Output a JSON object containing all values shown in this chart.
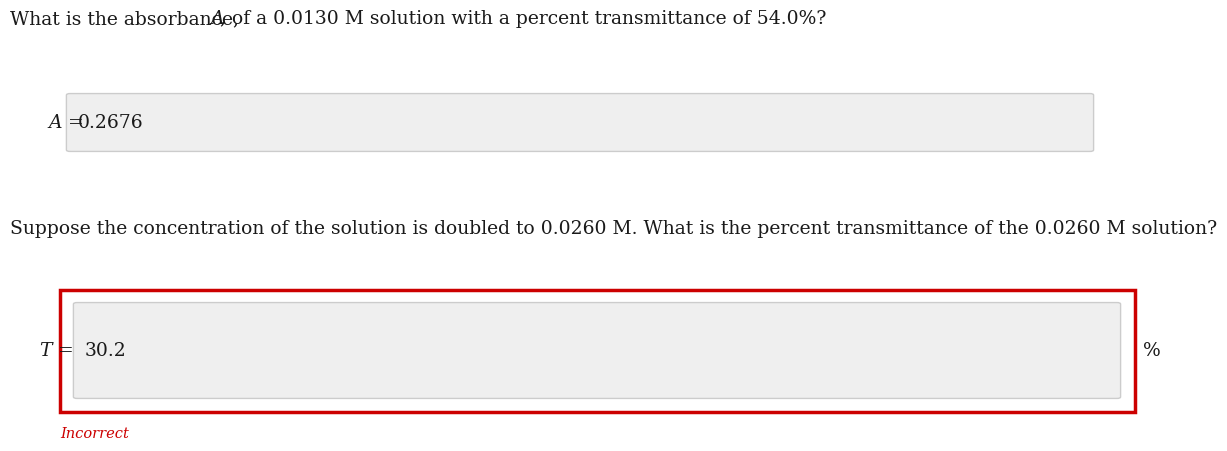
{
  "question1_plain": "What is the absorbance, ",
  "question1_italic": "A",
  "question1_rest": ", of a 0.0130 M solution with a percent transmittance of 54.0%?",
  "label1_italic": "A",
  "label1_eq": " =",
  "answer1": "0.2676",
  "question2": "Suppose the concentration of the solution is doubled to 0.0260 M. What is the percent transmittance of the 0.0260 M solution?",
  "label2_italic": "T",
  "label2_eq": " =",
  "answer2": "30.2",
  "unit2": "%",
  "incorrect_text": "Incorrect",
  "bg_color": "#ffffff",
  "box_fill_color": "#efefef",
  "box_border_color": "#cccccc",
  "red_border_color": "#cc0000",
  "incorrect_color": "#cc0000",
  "text_color": "#1a1a1a",
  "font_size": 13.5,
  "font_size_incorrect": 10.5
}
